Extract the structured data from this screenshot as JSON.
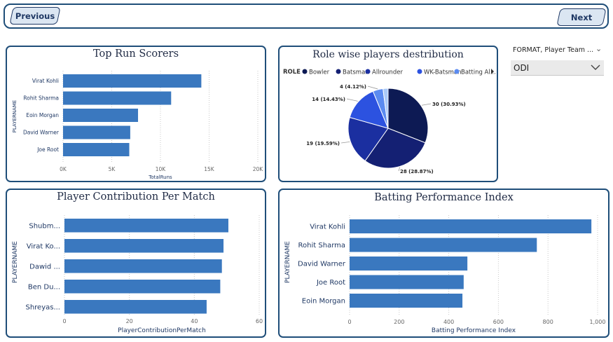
{
  "nav": {
    "previous_label": "Previous",
    "next_label": "Next"
  },
  "slicer": {
    "header": "FORMAT, Player Team ...",
    "selected": "ODI"
  },
  "colors": {
    "bar": "#3a78bf",
    "border": "#1f4e79",
    "pie": [
      "#0d1a54",
      "#142073",
      "#1b2fa0",
      "#2c52e0",
      "#5b8bf0",
      "#a9c9f8"
    ]
  },
  "chart_data": [
    {
      "type": "bar",
      "orientation": "horizontal",
      "title": "Top Run Scorers",
      "categories": [
        "Virat Kohli",
        "Rohit Sharma",
        "Eoin Morgan",
        "David Warner",
        "Joe Root"
      ],
      "values": [
        14200,
        11100,
        7700,
        6900,
        6800
      ],
      "xlabel": "TotalRuns",
      "ylabel": "PLAYERNAME",
      "xlim": [
        0,
        20000
      ],
      "xticks": [
        "0K",
        "5K",
        "10K",
        "15K",
        "20K"
      ],
      "grid": true
    },
    {
      "type": "pie",
      "title": "Role wise players destribution",
      "legend_title": "ROLE",
      "legend_position": "top",
      "legend": [
        "Bowler",
        "Batsman",
        "Allrounder",
        "WK-Batsman",
        "Batting Al..."
      ],
      "slices": [
        {
          "value": 30,
          "label": "30 (30.93%)"
        },
        {
          "value": 28,
          "label": "28 (28.87%)"
        },
        {
          "value": 19,
          "label": "19 (19.59%)"
        },
        {
          "value": 14,
          "label": "14 (14.43%)"
        },
        {
          "value": 4,
          "label": "4 (4.12%)"
        },
        {
          "value": 2,
          "label": ""
        }
      ]
    },
    {
      "type": "bar",
      "orientation": "horizontal",
      "title": "Player Contribution Per Match",
      "categories": [
        "Shubm...",
        "Virat Ko...",
        "Dawid ...",
        "Ben Du...",
        "Shreyas..."
      ],
      "values": [
        50.5,
        49,
        48.5,
        48,
        43.8
      ],
      "xlabel": "PlayerContributionPerMatch",
      "ylabel": "PLAYERNAME",
      "xlim": [
        0,
        60
      ],
      "xticks": [
        "0",
        "20",
        "40",
        "60"
      ],
      "grid": true
    },
    {
      "type": "bar",
      "orientation": "horizontal",
      "title": "Batting Performance Index",
      "categories": [
        "Virat Kohli",
        "Rohit Sharma",
        "David Warner",
        "Joe Root",
        "Eoin Morgan"
      ],
      "values": [
        975,
        755,
        475,
        460,
        455
      ],
      "xlabel": "Batting Performance Index",
      "ylabel": "PLAYERNAME",
      "xlim": [
        0,
        1000
      ],
      "xticks": [
        "0",
        "200",
        "400",
        "600",
        "800",
        "1,000"
      ],
      "grid": true
    }
  ]
}
